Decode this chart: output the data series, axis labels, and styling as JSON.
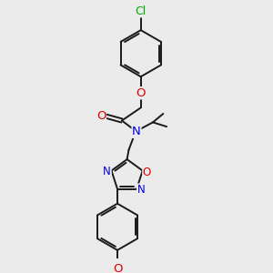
{
  "bg_color": "#ebebeb",
  "bond_color": "#1a1a1a",
  "atom_colors": {
    "O": "#e00000",
    "N": "#0000e0",
    "Cl": "#00aa00",
    "C": "#1a1a1a"
  },
  "bond_width": 1.4,
  "font_size": 8.5,
  "figsize": [
    3.0,
    3.0
  ],
  "dpi": 100,
  "scale": 1.0
}
